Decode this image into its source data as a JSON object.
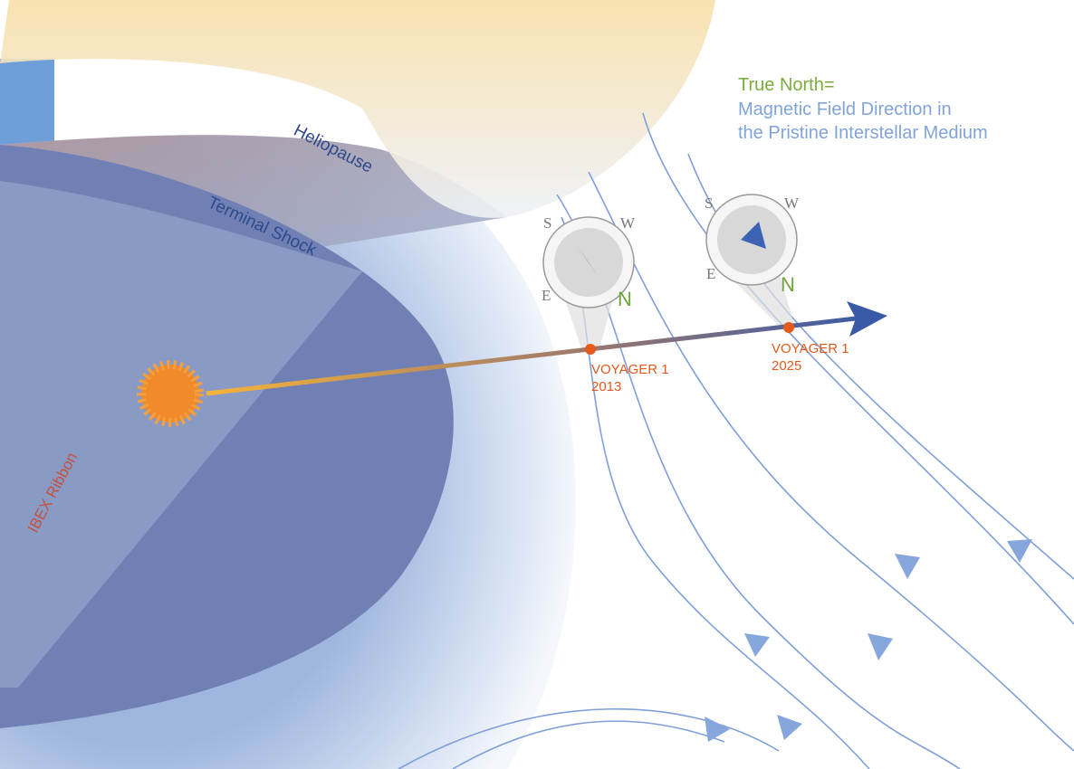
{
  "labels": {
    "heliopause": "Heliopause",
    "terminal_shock": "Terminal Shock",
    "ibex_ribbon": "IBEX Ribbon"
  },
  "legend": {
    "title": "True North=",
    "lines": [
      "Magnetic Field Direction in",
      "the Pristine Interstellar Medium"
    ]
  },
  "voyager_positions": [
    {
      "name": "VOYAGER 1",
      "year": "2013"
    },
    {
      "name": "VOYAGER 1",
      "year": "2025"
    }
  ],
  "compasses": [
    {
      "s": "S",
      "w": "W",
      "e": "E",
      "n": "N"
    },
    {
      "s": "S",
      "w": "W",
      "e": "E",
      "n": "N"
    }
  ]
}
